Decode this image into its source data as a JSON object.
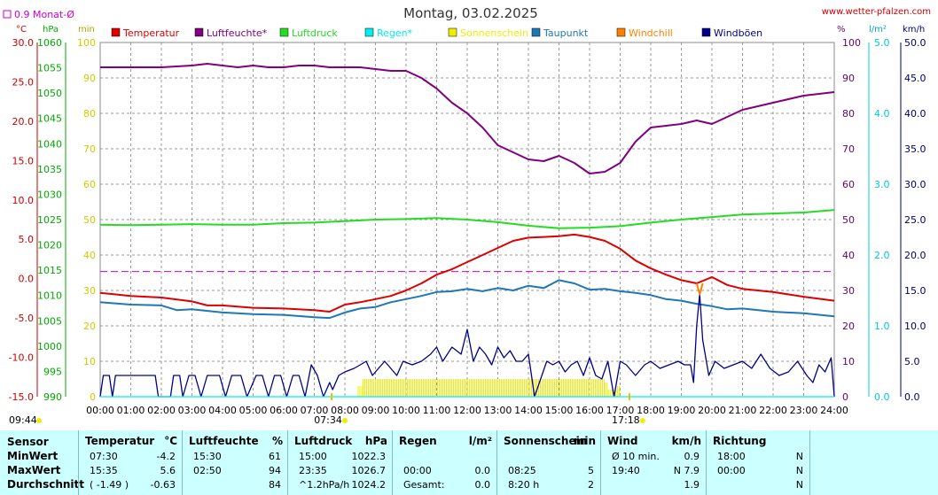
{
  "header": {
    "title": "Montag, 03.02.2025",
    "site": "www.wetter-pfalzen.com",
    "monthly_avg_label": "0.9 Monat-Ø",
    "color_monthly_avg": "#cc00cc"
  },
  "axis_units": {
    "temp": "°C",
    "pressure": "hPa",
    "min": "min",
    "humidity": "%",
    "rain": "l/m²",
    "wind": "km/h"
  },
  "chart_data": {
    "type": "line",
    "title": "Montag, 03.02.2025",
    "x_ticks": [
      "00:00",
      "01:00",
      "02:00",
      "03:00",
      "04:00",
      "05:00",
      "06:00",
      "07:00",
      "08:00",
      "09:00",
      "10:00",
      "11:00",
      "12:00",
      "13:00",
      "14:00",
      "15:00",
      "16:00",
      "17:00",
      "18:00",
      "19:00",
      "20:00",
      "21:00",
      "22:00",
      "23:00",
      "24:00"
    ],
    "sun_markers": {
      "sunrise": "07:34",
      "sunset": "17:18",
      "left_time": "09:44"
    },
    "axes": {
      "temp": {
        "min": -15,
        "max": 30,
        "step": 5,
        "ticks": [
          "30.0",
          "25.0",
          "20.0",
          "15.0",
          "10.0",
          "5.0",
          "0.0",
          "-5.0",
          "-10.0",
          "-15.0"
        ],
        "color": "#cc0000"
      },
      "pressure": {
        "min": 990,
        "max": 1060,
        "step": 5,
        "ticks": [
          "1060",
          "1055",
          "1050",
          "1045",
          "1040",
          "1035",
          "1030",
          "1025",
          "1020",
          "1015",
          "1010",
          "1005",
          "1000",
          "995",
          "990"
        ],
        "color": "#00aa00"
      },
      "minutes": {
        "min": 0,
        "max": 100,
        "ticks": [
          "100",
          "90",
          "80",
          "70",
          "60",
          "50",
          "40",
          "30",
          "20",
          "10",
          "0"
        ],
        "color": "#cccc00"
      },
      "humidity": {
        "min": 0,
        "max": 100,
        "ticks": [
          "100",
          "90",
          "80",
          "70",
          "60",
          "50",
          "40",
          "30",
          "20",
          "10",
          "0"
        ],
        "color": "#660066"
      },
      "rain": {
        "min": 0,
        "max": 5,
        "ticks": [
          "5.0",
          "4.0",
          "3.0",
          "2.0",
          "1.0",
          "0.0"
        ],
        "color": "#00cccc"
      },
      "wind": {
        "min": 0,
        "max": 50,
        "ticks": [
          "50.0",
          "45.0",
          "40.0",
          "35.0",
          "30.0",
          "25.0",
          "20.0",
          "15.0",
          "10.0",
          "5.0",
          "0.0"
        ],
        "color": "#000066"
      }
    },
    "monthly_avg_temp": 0.9,
    "legend": [
      {
        "label": "Temperatur",
        "color": "#dd0000"
      },
      {
        "label": "Luftfeuchte*",
        "color": "#800080"
      },
      {
        "label": "Luftdruck",
        "color": "#22dd22"
      },
      {
        "label": "Regen*",
        "color": "#00eeee"
      },
      {
        "label": "Sonnenschein",
        "color": "#eeee00"
      },
      {
        "label": "Taupunkt",
        "color": "#1f77b4"
      },
      {
        "label": "Windchill",
        "color": "#ff8000"
      },
      {
        "label": "Windböen",
        "color": "#000088"
      }
    ],
    "series": [
      {
        "name": "Luftfeuchte*",
        "axis": "humidity",
        "color": "#800080",
        "x": [
          0,
          1,
          2,
          3,
          3.5,
          4,
          4.5,
          5,
          5.5,
          6,
          6.5,
          7,
          7.5,
          8,
          8.5,
          9,
          9.5,
          10,
          10.5,
          11,
          11.5,
          12,
          12.5,
          13,
          13.5,
          14,
          14.5,
          15,
          15.5,
          16,
          16.5,
          17,
          17.5,
          18,
          18.5,
          19,
          19.5,
          20,
          20.5,
          21,
          22,
          23,
          24
        ],
        "y": [
          93,
          93,
          93,
          93.5,
          94,
          93.5,
          93,
          93.5,
          93,
          93,
          93.5,
          93.5,
          93,
          93,
          93,
          92.5,
          92,
          92,
          90,
          87,
          83,
          80,
          76,
          71,
          69,
          67,
          66.5,
          68,
          66,
          63,
          63.5,
          66,
          72,
          76,
          76.5,
          77,
          78,
          77,
          79,
          81,
          83,
          85,
          86
        ]
      },
      {
        "name": "Luftdruck",
        "axis": "pressure",
        "color": "#22dd22",
        "x": [
          0,
          1,
          2,
          3,
          4,
          5,
          6,
          7,
          8,
          9,
          10,
          11,
          12,
          13,
          14,
          15,
          16,
          17,
          18,
          19,
          20,
          21,
          22,
          23,
          24
        ],
        "y": [
          1024.0,
          1023.9,
          1024.0,
          1024.1,
          1024.0,
          1024.0,
          1024.3,
          1024.4,
          1024.7,
          1025.0,
          1025.1,
          1025.3,
          1025.0,
          1024.5,
          1023.8,
          1023.3,
          1023.4,
          1023.7,
          1024.4,
          1025.0,
          1025.5,
          1026.0,
          1026.2,
          1026.4,
          1026.9
        ]
      },
      {
        "name": "Temperatur",
        "axis": "temp",
        "color": "#dd0000",
        "x": [
          0,
          1,
          2,
          3,
          3.5,
          4,
          5,
          6,
          7,
          7.5,
          8,
          8.5,
          9,
          9.5,
          10,
          10.5,
          11,
          11.5,
          12,
          12.5,
          13,
          13.5,
          14,
          14.5,
          15,
          15.5,
          16,
          16.5,
          17,
          17.5,
          18,
          18.5,
          19,
          19.5,
          20,
          20.5,
          21,
          22,
          23,
          24
        ],
        "y": [
          -1.8,
          -2.2,
          -2.4,
          -2.9,
          -3.4,
          -3.4,
          -3.7,
          -3.8,
          -4.0,
          -4.2,
          -3.3,
          -3.0,
          -2.6,
          -2.2,
          -1.5,
          -0.6,
          0.5,
          1.2,
          2.1,
          3.0,
          3.9,
          4.8,
          5.2,
          5.3,
          5.4,
          5.6,
          5.3,
          4.8,
          3.8,
          2.3,
          1.3,
          0.5,
          -0.2,
          -0.6,
          0.2,
          -0.8,
          -1.3,
          -1.7,
          -2.3,
          -2.8
        ]
      },
      {
        "name": "Taupunkt",
        "axis": "temp",
        "color": "#1f77b4",
        "x": [
          0,
          1,
          2,
          2.5,
          3,
          4,
          5,
          6,
          7,
          7.5,
          8,
          8.5,
          9,
          9.5,
          10,
          10.5,
          11,
          11.5,
          12,
          12.5,
          13,
          13.5,
          14,
          14.5,
          15,
          15.5,
          16,
          16.5,
          17,
          17.5,
          18,
          18.5,
          19,
          19.5,
          20,
          20.5,
          21,
          22,
          23,
          24
        ],
        "y": [
          -3.0,
          -3.3,
          -3.4,
          -4.0,
          -3.9,
          -4.3,
          -4.5,
          -4.6,
          -4.9,
          -5.0,
          -4.3,
          -3.8,
          -3.6,
          -3.0,
          -2.6,
          -2.2,
          -1.7,
          -1.6,
          -1.3,
          -1.6,
          -1.2,
          -1.5,
          -0.9,
          -1.2,
          -0.2,
          -0.6,
          -1.4,
          -1.3,
          -1.6,
          -1.8,
          -2.1,
          -2.6,
          -2.8,
          -3.2,
          -3.5,
          -3.9,
          -3.8,
          -4.2,
          -4.4,
          -4.8
        ]
      },
      {
        "name": "Windböen",
        "axis": "wind",
        "color": "#000088",
        "x": [
          0,
          0.1,
          0.3,
          0.4,
          0.5,
          0.6,
          1.8,
          1.9,
          2.3,
          2.4,
          2.6,
          2.7,
          2.9,
          3.1,
          3.3,
          3.5,
          3.7,
          3.9,
          4.1,
          4.3,
          4.6,
          4.8,
          5.1,
          5.3,
          5.5,
          5.7,
          5.9,
          6.1,
          6.3,
          6.5,
          6.7,
          6.9,
          7.1,
          7.3,
          7.5,
          7.6,
          7.8,
          8.0,
          8.3,
          8.5,
          8.7,
          8.9,
          9.1,
          9.3,
          9.5,
          9.7,
          9.9,
          10.2,
          10.5,
          10.8,
          11.0,
          11.2,
          11.5,
          11.8,
          12.0,
          12.2,
          12.4,
          12.6,
          12.8,
          13.0,
          13.2,
          13.4,
          13.6,
          13.8,
          14.0,
          14.1,
          14.2,
          14.4,
          14.6,
          14.8,
          15.0,
          15.2,
          15.4,
          15.6,
          15.8,
          16.0,
          16.2,
          16.4,
          16.6,
          16.8,
          17.0,
          17.2,
          17.5,
          17.8,
          18.0,
          18.3,
          18.6,
          18.9,
          19.1,
          19.3,
          19.4,
          19.5,
          19.6,
          19.7,
          19.9,
          20.1,
          20.4,
          20.7,
          21.0,
          21.3,
          21.6,
          21.9,
          22.2,
          22.5,
          22.8,
          23.1,
          23.3,
          23.5,
          23.7,
          23.9,
          24
        ],
        "y": [
          0,
          3.0,
          3.0,
          0,
          3.0,
          3.0,
          3.0,
          0,
          0,
          3.0,
          3.0,
          0,
          3.0,
          3.0,
          0,
          3.0,
          3.0,
          3.0,
          0,
          3.0,
          3.0,
          0,
          3.0,
          3.0,
          0,
          3.0,
          3.0,
          0,
          3.0,
          3.0,
          0,
          4.5,
          3.0,
          0,
          2.0,
          1.0,
          3.0,
          3.5,
          4.0,
          4.5,
          5.0,
          3.0,
          4.0,
          5.0,
          4.0,
          3.0,
          5.0,
          4.5,
          5.0,
          6.0,
          7.0,
          5.0,
          7.0,
          6.0,
          9.5,
          5.0,
          7.0,
          6.0,
          4.5,
          7.0,
          5.5,
          6.5,
          5.0,
          5.0,
          6.0,
          3.0,
          0,
          2.5,
          5.0,
          4.5,
          5.0,
          3.5,
          4.5,
          5.0,
          3.0,
          5.5,
          3.0,
          2.5,
          5.0,
          0,
          5.0,
          4.5,
          3.0,
          4.5,
          5.0,
          4.0,
          4.5,
          5.0,
          4.5,
          4.5,
          2.0,
          10.0,
          14.5,
          8.0,
          3.0,
          5.0,
          4.0,
          4.5,
          5.0,
          4.0,
          6.0,
          4.0,
          3.0,
          3.5,
          5.0,
          3.0,
          2.0,
          4.5,
          3.5,
          5.5,
          0
        ]
      },
      {
        "name": "Windchill",
        "axis": "temp",
        "color": "#ff8000",
        "x": [
          19.5,
          19.6,
          19.7
        ],
        "y": [
          -0.6,
          -2.0,
          -0.6
        ]
      },
      {
        "name": "Regen*",
        "axis": "rain",
        "color": "#00eeee",
        "x": [
          0,
          24
        ],
        "y": [
          0,
          0
        ]
      },
      {
        "name": "Sonnenschein",
        "axis": "minutes",
        "type": "bar",
        "color": "#eeee00",
        "intervals": [
          [
            8.42,
            8.58,
            3
          ],
          [
            8.58,
            16.5,
            5
          ],
          [
            16.5,
            16.6,
            4
          ],
          [
            16.6,
            16.9,
            2
          ],
          [
            16.9,
            17.0,
            3
          ]
        ]
      }
    ]
  },
  "stats": {
    "row_labels": [
      "Sensor",
      "MinWert",
      "MaxWert",
      "Durchschnitt"
    ],
    "columns": [
      {
        "title": "Temperatur",
        "unit": "°C",
        "rows": [
          [
            "07:30",
            "-4.2"
          ],
          [
            "15:35",
            "5.6"
          ],
          [
            "( -1.49 )",
            "-0.63"
          ]
        ]
      },
      {
        "title": "Luftfeuchte",
        "unit": "%",
        "rows": [
          [
            "15:30",
            "61"
          ],
          [
            "02:50",
            "94"
          ],
          [
            "",
            "84"
          ]
        ]
      },
      {
        "title": "Luftdruck",
        "unit": "hPa",
        "rows": [
          [
            "15:00",
            "1022.3"
          ],
          [
            "23:35",
            "1026.7"
          ],
          [
            "^1.2hPa/h",
            "1024.2"
          ]
        ]
      },
      {
        "title": "Regen",
        "unit": "l/m²",
        "rows": [
          [
            "",
            ""
          ],
          [
            "00:00",
            "0.0"
          ],
          [
            "Gesamt:",
            "0.0"
          ]
        ]
      },
      {
        "title": "Sonnenschein",
        "unit": "min",
        "rows": [
          [
            "",
            ""
          ],
          [
            "08:25",
            "5"
          ],
          [
            "8:20 h",
            "2"
          ]
        ]
      },
      {
        "title": "Wind",
        "unit": "km/h",
        "rows": [
          [
            "Ø 10 min.",
            "0.9"
          ],
          [
            "19:40",
            "N 7.9"
          ],
          [
            "",
            "1.9"
          ]
        ]
      },
      {
        "title": "Richtung",
        "unit": "",
        "rows": [
          [
            "18:00",
            "N"
          ],
          [
            "00:00",
            "N"
          ],
          [
            "",
            "N"
          ]
        ]
      }
    ]
  }
}
